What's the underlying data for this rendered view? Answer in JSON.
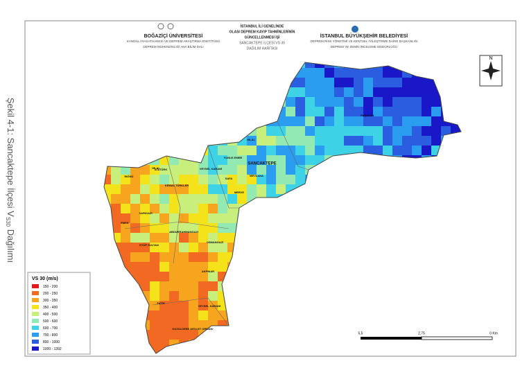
{
  "caption": {
    "text": "Şekil 4-1: Sancaktepe İlçesi V",
    "subscript": "S30",
    "suffix": "Dağılımı"
  },
  "header": {
    "left": [
      "BOĞAZİÇİ ÜNİVERSİTESİ",
      "KANDİLLİ RASATHANESİ VE DEPREM ARAŞTIRMA ENSTİTÜSÜ",
      "DEPREM MÜHENDİSLİĞİ ANA BİLİM DALI"
    ],
    "center": [
      "İSTANBUL İLİ GENELİNDE",
      "OLASI DEPREM KAYIP TAHMİNLERİNİN",
      "GÜNCELLENMESİ İŞİ",
      "SANCAKTEPE İLÇESİ VS 30",
      "DAĞILIM HARİTASI"
    ],
    "right": [
      "İSTANBUL BÜYÜKŞEHİR BELEDİYESİ",
      "DEPREM RİSK YÖNETİMİ VE KENTSEL İYİLEŞTİRME DAİRE BAŞKANLIĞI",
      "DEPREM VE ZEMİN İNCELEME MÜDÜRLÜĞÜ"
    ]
  },
  "north": "N",
  "legend": {
    "title": "VS 30 (m/s)",
    "items": [
      {
        "label": "150 - 200",
        "color": "#e3191c"
      },
      {
        "label": "200 - 250",
        "color": "#f26a21"
      },
      {
        "label": "300 - 350",
        "color": "#f7a51e"
      },
      {
        "label": "350 - 400",
        "color": "#f4e21b"
      },
      {
        "label": "400 - 500",
        "color": "#c8ee7c"
      },
      {
        "label": "500 - 600",
        "color": "#92e9b2"
      },
      {
        "label": "600 - 700",
        "color": "#3ed2e6"
      },
      {
        "label": "700 - 800",
        "color": "#2a9df0"
      },
      {
        "label": "800 - 1000",
        "color": "#2b5de0"
      },
      {
        "label": "1000 - 1392",
        "color": "#1818c8"
      }
    ]
  },
  "scale": [
    "5,5",
    "2,75",
    "0 Km"
  ],
  "places": [
    "PAŞAKÖY",
    "SANCAKTEPE",
    "HİLAL",
    "YUNUS EMRE",
    "MEVLANA",
    "SAFA",
    "MERVE",
    "İNÖNÜ",
    "ATATÜRK",
    "VEYSEL KARANİ",
    "HİLAL",
    "KEMAL TÜRKLER",
    "SARIGAZİ",
    "EMEK",
    "ABDURRAHMANGAZİ",
    "EYÜP SULTAN",
    "OSMANGAZİ",
    "AKPINAR",
    "FATİH",
    "VEYSEL KARANİ",
    "KUZULDERE DEVLET ORMANI"
  ]
}
